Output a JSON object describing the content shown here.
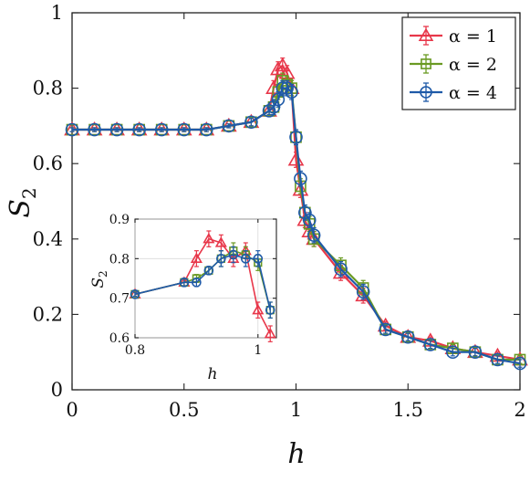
{
  "chart_data": [
    {
      "type": "line",
      "xlabel": "h",
      "ylabel": "S",
      "ylabel_sub": "2",
      "xlim": [
        0,
        2
      ],
      "ylim": [
        0,
        1
      ],
      "xticks": [
        "0",
        "0.5",
        "1",
        "1.5",
        "2"
      ],
      "yticks": [
        "0",
        "0.2",
        "0.4",
        "0.6",
        "0.8",
        "1"
      ],
      "grid": false,
      "legend_position": "top-right",
      "series": [
        {
          "name": "α = 1",
          "color": "#e8374a",
          "marker": "triangle",
          "x": [
            0,
            0.1,
            0.2,
            0.3,
            0.4,
            0.5,
            0.6,
            0.7,
            0.8,
            0.88,
            0.9,
            0.92,
            0.94,
            0.96,
            0.98,
            1.0,
            1.02,
            1.04,
            1.06,
            1.08,
            1.2,
            1.3,
            1.4,
            1.5,
            1.6,
            1.7,
            1.8,
            1.9,
            2.0
          ],
          "y": [
            0.69,
            0.69,
            0.69,
            0.69,
            0.69,
            0.69,
            0.69,
            0.7,
            0.71,
            0.74,
            0.8,
            0.85,
            0.86,
            0.84,
            0.8,
            0.61,
            0.53,
            0.45,
            0.42,
            0.4,
            0.31,
            0.25,
            0.17,
            0.14,
            0.13,
            0.11,
            0.1,
            0.09,
            0.08
          ],
          "err": [
            0.005,
            0.005,
            0.005,
            0.005,
            0.005,
            0.005,
            0.005,
            0.005,
            0.01,
            0.01,
            0.02,
            0.02,
            0.02,
            0.02,
            0.02,
            0.02,
            0.02,
            0.02,
            0.02,
            0.02,
            0.02,
            0.02,
            0.01,
            0.01,
            0.01,
            0.01,
            0.01,
            0.01,
            0.01
          ]
        },
        {
          "name": "α = 2",
          "color": "#6a9a23",
          "marker": "square",
          "x": [
            0,
            0.1,
            0.2,
            0.3,
            0.4,
            0.5,
            0.6,
            0.7,
            0.8,
            0.88,
            0.9,
            0.92,
            0.94,
            0.96,
            0.98,
            1.0,
            1.02,
            1.04,
            1.06,
            1.08,
            1.2,
            1.3,
            1.4,
            1.5,
            1.6,
            1.7,
            1.8,
            1.9,
            2.0
          ],
          "y": [
            0.69,
            0.69,
            0.69,
            0.69,
            0.69,
            0.69,
            0.69,
            0.7,
            0.71,
            0.74,
            0.75,
            0.79,
            0.82,
            0.81,
            0.8,
            0.67,
            0.54,
            0.47,
            0.44,
            0.4,
            0.33,
            0.27,
            0.16,
            0.14,
            0.12,
            0.11,
            0.1,
            0.08,
            0.08
          ],
          "err": [
            0.005,
            0.005,
            0.005,
            0.005,
            0.005,
            0.005,
            0.005,
            0.005,
            0.01,
            0.01,
            0.02,
            0.02,
            0.02,
            0.02,
            0.02,
            0.02,
            0.02,
            0.02,
            0.02,
            0.02,
            0.02,
            0.02,
            0.01,
            0.01,
            0.01,
            0.01,
            0.01,
            0.01,
            0.01
          ]
        },
        {
          "name": "α = 4",
          "color": "#1f5aa8",
          "marker": "circle",
          "x": [
            0,
            0.1,
            0.2,
            0.3,
            0.4,
            0.5,
            0.6,
            0.7,
            0.8,
            0.88,
            0.9,
            0.92,
            0.94,
            0.96,
            0.98,
            1.0,
            1.02,
            1.04,
            1.06,
            1.08,
            1.2,
            1.3,
            1.4,
            1.5,
            1.6,
            1.7,
            1.8,
            1.9,
            2.0
          ],
          "y": [
            0.69,
            0.69,
            0.69,
            0.69,
            0.69,
            0.69,
            0.69,
            0.7,
            0.71,
            0.74,
            0.75,
            0.77,
            0.8,
            0.8,
            0.79,
            0.67,
            0.56,
            0.47,
            0.45,
            0.41,
            0.32,
            0.26,
            0.16,
            0.14,
            0.12,
            0.1,
            0.1,
            0.08,
            0.07
          ],
          "err": [
            0.005,
            0.005,
            0.005,
            0.005,
            0.005,
            0.005,
            0.005,
            0.005,
            0.01,
            0.01,
            0.02,
            0.02,
            0.02,
            0.02,
            0.02,
            0.02,
            0.02,
            0.02,
            0.02,
            0.02,
            0.02,
            0.02,
            0.01,
            0.01,
            0.01,
            0.01,
            0.01,
            0.01,
            0.01
          ]
        }
      ]
    },
    {
      "type": "line",
      "role": "inset",
      "xlabel": "h",
      "ylabel": "S",
      "ylabel_sub": "2",
      "xlim": [
        0.8,
        1.03
      ],
      "ylim": [
        0.6,
        0.9
      ],
      "xticks": [
        "0.8",
        "1"
      ],
      "yticks": [
        "0.6",
        "0.7",
        "0.8",
        "0.9"
      ],
      "grid": true,
      "series": [
        {
          "name": "α = 1",
          "color": "#e8374a",
          "marker": "triangle",
          "x": [
            0.8,
            0.88,
            0.9,
            0.92,
            0.94,
            0.96,
            0.98,
            1.0,
            1.02
          ],
          "y": [
            0.71,
            0.74,
            0.8,
            0.85,
            0.84,
            0.8,
            0.82,
            0.67,
            0.61
          ],
          "err": [
            0.005,
            0.01,
            0.02,
            0.02,
            0.02,
            0.02,
            0.02,
            0.02,
            0.02
          ]
        },
        {
          "name": "α = 2",
          "color": "#6a9a23",
          "marker": "square",
          "x": [
            0.8,
            0.88,
            0.9,
            0.92,
            0.94,
            0.96,
            0.98,
            1.0,
            1.02
          ],
          "y": [
            0.71,
            0.74,
            0.75,
            0.77,
            0.8,
            0.82,
            0.81,
            0.79,
            0.67
          ],
          "err": [
            0.005,
            0.01,
            0.01,
            0.01,
            0.02,
            0.02,
            0.02,
            0.02,
            0.02
          ]
        },
        {
          "name": "α = 4",
          "color": "#1f5aa8",
          "marker": "circle",
          "x": [
            0.8,
            0.88,
            0.9,
            0.92,
            0.94,
            0.96,
            0.98,
            1.0,
            1.02
          ],
          "y": [
            0.71,
            0.74,
            0.74,
            0.77,
            0.8,
            0.81,
            0.8,
            0.8,
            0.67
          ],
          "err": [
            0.005,
            0.01,
            0.01,
            0.01,
            0.02,
            0.02,
            0.02,
            0.02,
            0.02
          ]
        }
      ]
    }
  ]
}
